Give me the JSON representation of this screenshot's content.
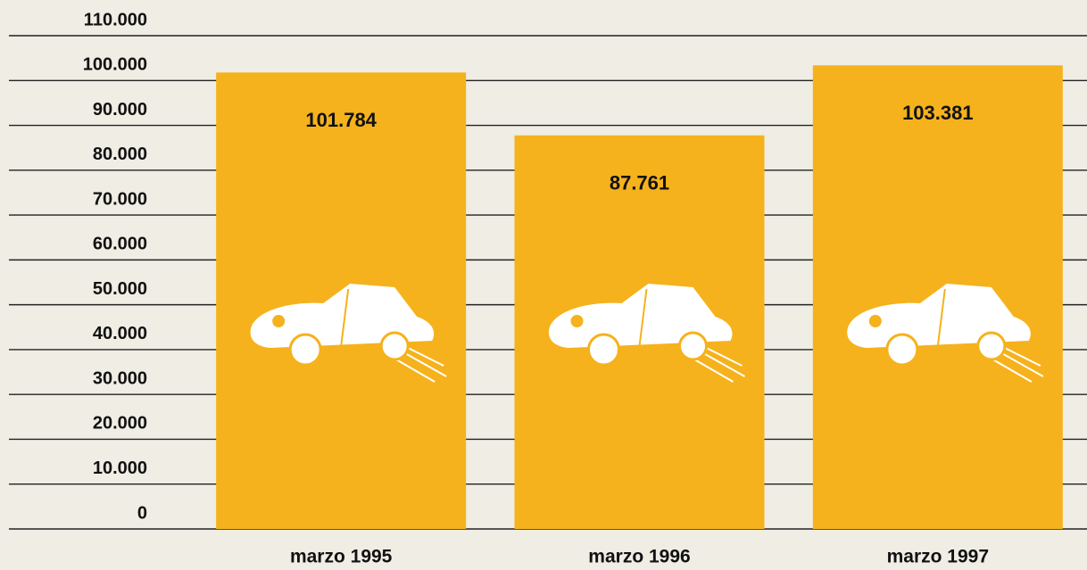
{
  "chart_data": {
    "type": "bar",
    "categories": [
      "marzo 1995",
      "marzo 1996",
      "marzo 1997"
    ],
    "values": [
      101784,
      87761,
      103381
    ],
    "value_labels": [
      "101.784",
      "87.761",
      "103.381"
    ],
    "color": "#f5b21c",
    "ylim": [
      0,
      110000
    ],
    "yticks": [
      0,
      {
        "value": 10000,
        "label": "10.000"
      },
      {
        "value": 20000,
        "label": "20.000"
      },
      {
        "value": 30000,
        "label": "30.000"
      },
      {
        "value": 40000,
        "label": "40.000"
      },
      {
        "value": 50000,
        "label": "50.000"
      },
      {
        "value": 60000,
        "label": "60.000"
      },
      {
        "value": 70000,
        "label": "70.000"
      },
      {
        "value": 80000,
        "label": "80.000"
      },
      {
        "value": 90000,
        "label": "90.000"
      },
      {
        "value": 100000,
        "label": "100.000"
      },
      {
        "value": 110000,
        "label": "110.000"
      }
    ],
    "grid": true
  }
}
